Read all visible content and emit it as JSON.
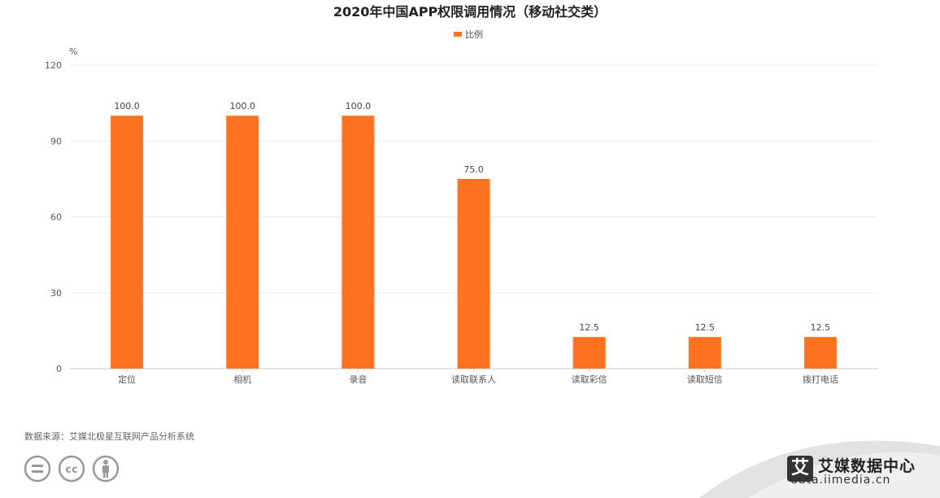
{
  "chart_data": {
    "type": "bar",
    "title": "2020年中国APP权限调用情况（移动社交类）",
    "unit": "%",
    "categories": [
      "定位",
      "相机",
      "录音",
      "读取联系人",
      "读取彩信",
      "读取短信",
      "拨打电话"
    ],
    "series": [
      {
        "name": "比例",
        "values": [
          100.0,
          100.0,
          100.0,
          75.0,
          12.5,
          12.5,
          12.5
        ]
      }
    ],
    "data_labels": [
      "100.0",
      "100.0",
      "100.0",
      "75.0",
      "12.5",
      "12.5",
      "12.5"
    ],
    "y_ticks": [
      0,
      30,
      60,
      90,
      120
    ],
    "ylim": [
      0,
      120
    ],
    "grid": true,
    "legend_position": "top-center",
    "colors": {
      "bar": "#ff7220",
      "grid": "#ebebeb",
      "axis": "#cccccc"
    }
  },
  "footer": {
    "source": "数据来源：艾媒北极星互联网产品分析系统",
    "cc_icons": [
      "equals-icon",
      "cc-icon",
      "person-icon"
    ]
  },
  "brand": {
    "logo_char": "艾",
    "name": "艾媒数据中心",
    "url": "data.iimedia.cn"
  }
}
